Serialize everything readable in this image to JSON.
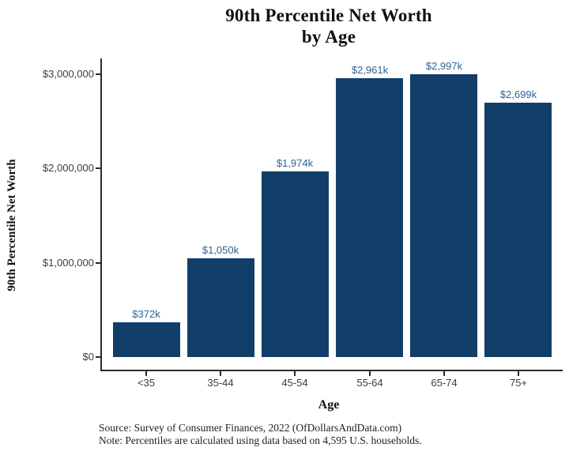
{
  "title": {
    "lines": [
      "90th Percentile Net Worth",
      "by Age"
    ]
  },
  "chart_data": {
    "type": "bar",
    "title": "90th Percentile Net Worth by Age",
    "xlabel": "Age",
    "ylabel": "90th Percentile Net Worth",
    "categories": [
      "<35",
      "35-44",
      "45-54",
      "55-64",
      "65-74",
      "75+"
    ],
    "values": [
      372000,
      1050000,
      1974000,
      2961000,
      2997000,
      2699000
    ],
    "bar_labels": [
      "$372k",
      "$1,050k",
      "$1,974k",
      "$2,961k",
      "$2,997k",
      "$2,699k"
    ],
    "y_ticks": [
      {
        "value": 0,
        "label": "$0"
      },
      {
        "value": 1000000,
        "label": "$1,000,000"
      },
      {
        "value": 2000000,
        "label": "$2,000,000"
      },
      {
        "value": 3000000,
        "label": "$3,000,000"
      }
    ],
    "ylim": [
      0,
      3150000
    ],
    "grid": false,
    "legend": "none",
    "bar_color": "#123f69",
    "bar_label_color": "#2e6395",
    "axis_color": "#2b2b2b",
    "tick_label_color": "#3d3d3d"
  },
  "footer": {
    "source": "Source:  Survey of Consumer Finances, 2022 (OfDollarsAndData.com)",
    "note": "Note: Percentiles are calculated using data based on 4,595 U.S. households."
  }
}
